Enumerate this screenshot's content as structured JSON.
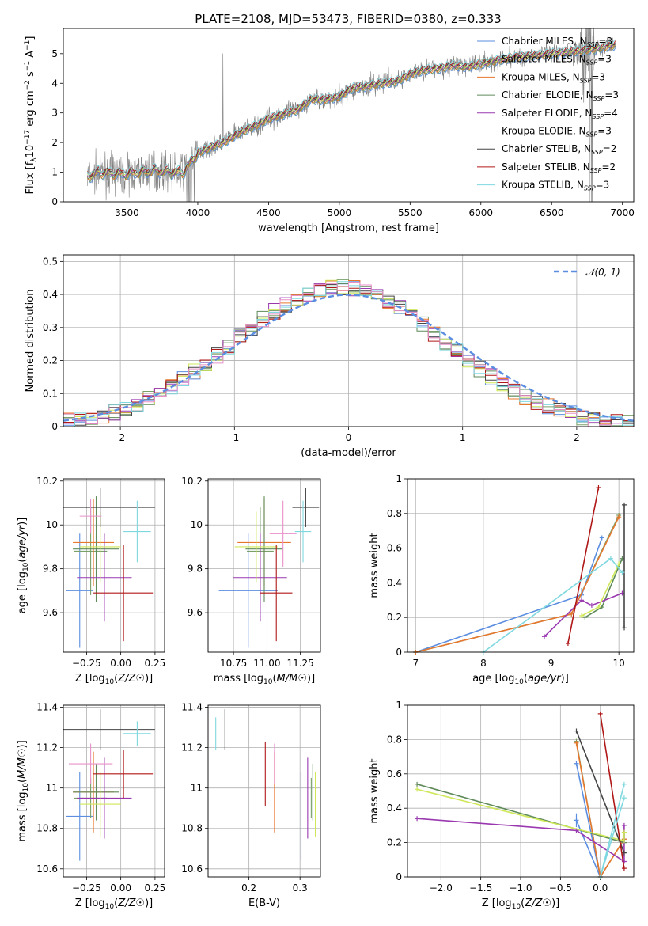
{
  "title": "PLATE=2108, MJD=53473, FIBERID=0380, z=0.333",
  "colors": {
    "Chabrier MILES": "#5b8ee0",
    "Salpeter MILES": "#7aa06a",
    "Kroupa MILES": "#e8772e",
    "Chabrier ELODIE": "#5f8a5a",
    "Salpeter ELODIE": "#9a38b0",
    "Kroupa ELODIE": "#cfe85a",
    "Chabrier STELIB": "#444444",
    "Salpeter STELIB": "#b01818",
    "Kroupa STELIB": "#7fd8e0",
    "data": "#808080",
    "pink": "#e890c8"
  },
  "chart_data": [
    {
      "id": "spectrum",
      "type": "line",
      "title": "PLATE=2108, MJD=53473, FIBERID=0380, z=0.333",
      "xlabel": "wavelength [Angstrom, rest frame]",
      "ylabel": "Flux [f$_\\lambda$10$^{-17}$ erg cm$^{-2}$ s$^{-1}$ A$^{-1}$]",
      "ylabel_parts": [
        "Flux [f",
        "λ",
        "10",
        "−17",
        " erg cm",
        "−2",
        " s",
        "−1",
        " A",
        "−1",
        "]"
      ],
      "xlim": [
        3050,
        7080
      ],
      "ylim": [
        0,
        5.85
      ],
      "xticks": [
        3500,
        4000,
        4500,
        5000,
        5500,
        6000,
        6500,
        7000
      ],
      "yticks": [
        0,
        1,
        2,
        3,
        4,
        5
      ],
      "legend_loc": "upper-right",
      "legend": [
        {
          "main": "Chabrier MILES, N",
          "sub": "SSP",
          "tail": "=3"
        },
        {
          "main": "Salpeter MILES, N",
          "sub": "SSP",
          "tail": "=3"
        },
        {
          "main": "Kroupa MILES, N",
          "sub": "SSP",
          "tail": "=3"
        },
        {
          "main": "Chabrier ELODIE, N",
          "sub": "SSP",
          "tail": "=3"
        },
        {
          "main": "Salpeter ELODIE, N",
          "sub": "SSP",
          "tail": "=4"
        },
        {
          "main": "Kroupa ELODIE, N",
          "sub": "SSP",
          "tail": "=3"
        },
        {
          "main": "Chabrier STELIB, N",
          "sub": "SSP",
          "tail": "=2"
        },
        {
          "main": "Salpeter STELIB, N",
          "sub": "SSP",
          "tail": "=2"
        },
        {
          "main": "Kroupa STELIB, N",
          "sub": "SSP",
          "tail": "=3"
        }
      ],
      "series_models": [
        "Chabrier MILES",
        "Salpeter MILES",
        "Kroupa MILES",
        "Chabrier ELODIE",
        "Salpeter ELODIE",
        "Kroupa ELODIE",
        "Chabrier STELIB",
        "Salpeter STELIB",
        "Kroupa STELIB"
      ],
      "continuum": {
        "x": [
          3220,
          3300,
          3400,
          3500,
          3600,
          3700,
          3800,
          3900,
          4000,
          4100,
          4200,
          4300,
          4400,
          4500,
          4600,
          4700,
          4800,
          4900,
          5000,
          5100,
          5200,
          5300,
          5400,
          5500,
          5600,
          5700,
          5800,
          5900,
          6000,
          6100,
          6200,
          6300,
          6400,
          6500,
          6600,
          6700,
          6800,
          6900,
          7000
        ],
        "y": [
          0.85,
          1.0,
          0.95,
          0.95,
          1.0,
          1.05,
          1.0,
          1.0,
          1.65,
          1.85,
          2.05,
          2.35,
          2.55,
          2.8,
          2.95,
          3.1,
          3.45,
          3.45,
          3.55,
          3.85,
          3.9,
          4.0,
          4.05,
          4.3,
          4.45,
          4.5,
          4.6,
          4.55,
          4.65,
          4.75,
          4.85,
          4.9,
          4.95,
          5.0,
          5.05,
          5.1,
          5.15,
          5.25,
          5.35
        ]
      },
      "data_spectrum": {
        "x_range": [
          3220,
          6950
        ],
        "noise": "high below 4000 and near 6750"
      }
    },
    {
      "id": "residuals",
      "type": "step-histogram",
      "xlabel": "(data-model)/error",
      "ylabel": "Normed distribution",
      "xlim": [
        -2.5,
        2.5
      ],
      "ylim": [
        0,
        0.52
      ],
      "xticks": [
        -2,
        -1,
        0,
        1,
        2
      ],
      "yticks": [
        0,
        0.1,
        0.2,
        0.3,
        0.4,
        0.5
      ],
      "grid": true,
      "legend_loc": "upper-right",
      "legend": [
        {
          "label": "𝒩(0, 1)",
          "style": "dashed"
        }
      ],
      "bin_width": 0.1,
      "reference_curve": {
        "name": "𝒩(0, 1)",
        "mu": 0,
        "sigma": 1
      }
    },
    {
      "id": "age-vs-Z",
      "type": "errorbar",
      "xlabel": "Z [log10(Z/Z☉)]",
      "ylabel": "age  [log10(age/yr)]",
      "xlim": [
        -0.42,
        0.32
      ],
      "ylim": [
        9.42,
        10.21
      ],
      "xticks": [
        -0.25,
        0.0,
        0.25
      ],
      "xtick_labels": [
        "−0.25",
        "0.00",
        "0.25"
      ],
      "yticks": [
        9.6,
        9.8,
        10.0,
        10.2
      ],
      "grid": true,
      "points": [
        {
          "model": "Chabrier MILES",
          "x": -0.3,
          "xerr": 0.1,
          "y": 9.7,
          "yerr": 0.26
        },
        {
          "model": "Salpeter MILES",
          "x": -0.22,
          "xerr": 0.12,
          "y": 9.88,
          "yerr": 0.2
        },
        {
          "model": "Kroupa MILES",
          "x": -0.2,
          "xerr": 0.15,
          "y": 9.92,
          "yerr": 0.2
        },
        {
          "model": "Chabrier ELODIE",
          "x": -0.18,
          "xerr": 0.17,
          "y": 9.89,
          "yerr": 0.24
        },
        {
          "model": "Salpeter ELODIE",
          "x": -0.12,
          "xerr": 0.2,
          "y": 9.76,
          "yerr": 0.2
        },
        {
          "model": "Kroupa ELODIE",
          "x": -0.15,
          "xerr": 0.15,
          "y": 9.9,
          "yerr": 0.16
        },
        {
          "model": "Chabrier STELIB",
          "x": -0.15,
          "xerr": 0.4,
          "y": 10.08,
          "yerr": 0.09
        },
        {
          "model": "Salpeter STELIB",
          "x": 0.02,
          "xerr": 0.22,
          "y": 9.69,
          "yerr": 0.22
        },
        {
          "model": "Kroupa STELIB",
          "x": 0.12,
          "xerr": 0.1,
          "y": 9.97,
          "yerr": 0.14
        },
        {
          "model": "pink",
          "x": -0.22,
          "xerr": 0.08,
          "y": 10.04,
          "yerr": 0.08
        }
      ]
    },
    {
      "id": "age-vs-mass",
      "type": "errorbar",
      "xlabel": "mass [log10(M/M☉)]",
      "ylabel": "",
      "xlim": [
        10.56,
        11.4
      ],
      "ylim": [
        9.42,
        10.21
      ],
      "xticks": [
        10.75,
        11.0,
        11.25
      ],
      "xtick_labels": [
        "10.75",
        "11.00",
        "11.25"
      ],
      "yticks": [
        9.6,
        9.8,
        10.0,
        10.2
      ],
      "grid": true,
      "points": [
        {
          "model": "Chabrier MILES",
          "x": 10.86,
          "xerr": 0.22,
          "y": 9.7,
          "yerr": 0.26
        },
        {
          "model": "Salpeter MILES",
          "x": 10.95,
          "xerr": 0.1,
          "y": 9.88,
          "yerr": 0.2
        },
        {
          "model": "Kroupa MILES",
          "x": 10.98,
          "xerr": 0.2,
          "y": 9.92,
          "yerr": 0.2
        },
        {
          "model": "Chabrier ELODIE",
          "x": 10.98,
          "xerr": 0.14,
          "y": 9.89,
          "yerr": 0.24
        },
        {
          "model": "Salpeter ELODIE",
          "x": 10.95,
          "xerr": 0.2,
          "y": 9.76,
          "yerr": 0.2
        },
        {
          "model": "Kroupa ELODIE",
          "x": 10.92,
          "xerr": 0.16,
          "y": 9.9,
          "yerr": 0.16
        },
        {
          "model": "Chabrier STELIB",
          "x": 11.29,
          "xerr": 0.1,
          "y": 10.08,
          "yerr": 0.09
        },
        {
          "model": "Salpeter STELIB",
          "x": 11.07,
          "xerr": 0.12,
          "y": 9.69,
          "yerr": 0.22
        },
        {
          "model": "Kroupa STELIB",
          "x": 11.27,
          "xerr": 0.06,
          "y": 9.97,
          "yerr": 0.14
        },
        {
          "model": "pink",
          "x": 11.12,
          "xerr": 0.1,
          "y": 9.96,
          "yerr": 0.15
        }
      ]
    },
    {
      "id": "mass-weight-vs-age",
      "type": "line",
      "xlabel": "age  [log10(age/yr)]",
      "ylabel": "mass weight",
      "xlim": [
        6.88,
        10.22
      ],
      "ylim": [
        0,
        1.0
      ],
      "xticks": [
        7,
        8,
        9,
        10
      ],
      "yticks": [
        0,
        0.2,
        0.4,
        0.6,
        0.8,
        1.0
      ],
      "grid": true,
      "series": [
        {
          "model": "Chabrier MILES",
          "x": [
            7.0,
            9.45,
            9.75
          ],
          "y": [
            0.0,
            0.33,
            0.66
          ],
          "yerr": [
            0,
            0.04,
            0
          ]
        },
        {
          "model": "Salpeter MILES",
          "x": [
            7.0,
            9.3,
            10.0
          ],
          "y": [
            0.0,
            0.22,
            0.79
          ]
        },
        {
          "model": "Kroupa MILES",
          "x": [
            7.0,
            9.3,
            10.0
          ],
          "y": [
            0.0,
            0.22,
            0.78
          ]
        },
        {
          "model": "Chabrier ELODIE",
          "x": [
            9.5,
            9.75,
            10.05
          ],
          "y": [
            0.2,
            0.26,
            0.54
          ]
        },
        {
          "model": "Salpeter ELODIE",
          "x": [
            8.9,
            9.45,
            9.6,
            10.05
          ],
          "y": [
            0.09,
            0.3,
            0.27,
            0.34
          ]
        },
        {
          "model": "Kroupa ELODIE",
          "x": [
            9.45,
            9.7,
            10.0
          ],
          "y": [
            0.21,
            0.26,
            0.51
          ]
        },
        {
          "model": "Chabrier STELIB",
          "x": [
            10.08,
            10.08
          ],
          "y": [
            0.14,
            0.85
          ]
        },
        {
          "model": "Salpeter STELIB",
          "x": [
            9.25,
            9.7
          ],
          "y": [
            0.05,
            0.95
          ]
        },
        {
          "model": "Kroupa STELIB",
          "x": [
            8.0,
            9.88,
            10.05
          ],
          "y": [
            0.0,
            0.54,
            0.46
          ]
        }
      ]
    },
    {
      "id": "mass-vs-Z",
      "type": "errorbar",
      "xlabel": "Z [log10(Z/Z☉)]",
      "ylabel": "mass [log10(M/M☉)]",
      "xlim": [
        -0.42,
        0.32
      ],
      "ylim": [
        10.56,
        11.41
      ],
      "xticks": [
        -0.25,
        0.0,
        0.25
      ],
      "xtick_labels": [
        "−0.25",
        "0.00",
        "0.25"
      ],
      "yticks": [
        10.6,
        10.8,
        11.0,
        11.2,
        11.4
      ],
      "grid": true,
      "points": [
        {
          "model": "Chabrier MILES",
          "x": -0.3,
          "xerr": 0.1,
          "y": 10.86,
          "yerr": 0.22
        },
        {
          "model": "Salpeter MILES",
          "x": -0.22,
          "xerr": 0.12,
          "y": 10.95,
          "yerr": 0.1
        },
        {
          "model": "Kroupa MILES",
          "x": -0.2,
          "xerr": 0.15,
          "y": 10.98,
          "yerr": 0.2
        },
        {
          "model": "Chabrier ELODIE",
          "x": -0.18,
          "xerr": 0.17,
          "y": 10.98,
          "yerr": 0.14
        },
        {
          "model": "Salpeter ELODIE",
          "x": -0.12,
          "xerr": 0.2,
          "y": 10.95,
          "yerr": 0.2
        },
        {
          "model": "Kroupa ELODIE",
          "x": -0.15,
          "xerr": 0.15,
          "y": 10.92,
          "yerr": 0.16
        },
        {
          "model": "Chabrier STELIB",
          "x": -0.15,
          "xerr": 0.4,
          "y": 11.29,
          "yerr": 0.1
        },
        {
          "model": "Salpeter STELIB",
          "x": 0.02,
          "xerr": 0.22,
          "y": 11.07,
          "yerr": 0.12
        },
        {
          "model": "Kroupa STELIB",
          "x": 0.12,
          "xerr": 0.1,
          "y": 11.27,
          "yerr": 0.06
        },
        {
          "model": "pink",
          "x": -0.22,
          "xerr": 0.16,
          "y": 11.12,
          "yerr": 0.1
        }
      ]
    },
    {
      "id": "mass-vs-EBV",
      "type": "errorbar",
      "xlabel": "E(B-V)",
      "ylabel": "",
      "xlim": [
        0.12,
        0.34
      ],
      "ylim": [
        10.56,
        11.41
      ],
      "xticks": [
        0.2,
        0.3
      ],
      "yticks": [
        10.6,
        10.8,
        11.0,
        11.2,
        11.4
      ],
      "grid": true,
      "points": [
        {
          "model": "Chabrier MILES",
          "x": 0.302,
          "y": 10.86,
          "yerr": 0.22
        },
        {
          "model": "Salpeter MILES",
          "x": 0.322,
          "y": 10.95,
          "yerr": 0.1
        },
        {
          "model": "Kroupa MILES",
          "x": 0.25,
          "y": 10.98,
          "yerr": 0.2
        },
        {
          "model": "Chabrier ELODIE",
          "x": 0.325,
          "y": 10.98,
          "yerr": 0.14
        },
        {
          "model": "Salpeter ELODIE",
          "x": 0.315,
          "y": 10.95,
          "yerr": 0.2
        },
        {
          "model": "Kroupa ELODIE",
          "x": 0.33,
          "y": 10.92,
          "yerr": 0.16
        },
        {
          "model": "Chabrier STELIB",
          "x": 0.153,
          "y": 11.29,
          "yerr": 0.1
        },
        {
          "model": "Salpeter STELIB",
          "x": 0.232,
          "y": 11.07,
          "yerr": 0.16
        },
        {
          "model": "Kroupa STELIB",
          "x": 0.135,
          "y": 11.27,
          "yerr": 0.08
        },
        {
          "model": "pink",
          "x": 0.25,
          "y": 11.12,
          "yerr": 0.1
        }
      ]
    },
    {
      "id": "mass-weight-vs-Z",
      "type": "line",
      "xlabel": "Z [log10(Z/Z☉)]",
      "ylabel": "mass weight",
      "xlim": [
        -2.42,
        0.42
      ],
      "ylim": [
        0,
        1.0
      ],
      "xticks": [
        -2.0,
        -1.5,
        -1.0,
        -0.5,
        0.0
      ],
      "xtick_labels": [
        "−2.0",
        "−1.5",
        "−1.0",
        "−0.5",
        "0.0"
      ],
      "yticks": [
        0,
        0.2,
        0.4,
        0.6,
        0.8,
        1.0
      ],
      "grid": true,
      "series": [
        {
          "model": "Chabrier MILES",
          "x": [
            -0.3,
            0.0,
            -0.3
          ],
          "y": [
            0.66,
            0.0,
            0.33
          ],
          "yerr": [
            0,
            0,
            0.04
          ]
        },
        {
          "model": "Salpeter MILES",
          "x": [
            -0.3,
            0.0,
            0.3
          ],
          "y": [
            0.79,
            0.0,
            0.22
          ]
        },
        {
          "model": "Kroupa MILES",
          "x": [
            -0.3,
            0.0,
            0.3
          ],
          "y": [
            0.78,
            0.0,
            0.22
          ]
        },
        {
          "model": "Chabrier ELODIE",
          "x": [
            -2.3,
            0.3,
            0.3
          ],
          "y": [
            0.54,
            0.2,
            0.26
          ]
        },
        {
          "model": "Salpeter ELODIE",
          "x": [
            -2.3,
            -0.3,
            0.3,
            0.3
          ],
          "y": [
            0.34,
            0.27,
            0.09,
            0.3
          ]
        },
        {
          "model": "Kroupa ELODIE",
          "x": [
            -2.3,
            0.3,
            0.3
          ],
          "y": [
            0.51,
            0.21,
            0.26
          ]
        },
        {
          "model": "Chabrier STELIB",
          "x": [
            -0.3,
            0.3
          ],
          "y": [
            0.85,
            0.14
          ]
        },
        {
          "model": "Salpeter STELIB",
          "x": [
            0.0,
            0.3
          ],
          "y": [
            0.95,
            0.05
          ]
        },
        {
          "model": "Kroupa STELIB",
          "x": [
            0.3,
            0.0,
            0.3
          ],
          "y": [
            0.54,
            0.0,
            0.46
          ]
        }
      ]
    }
  ]
}
